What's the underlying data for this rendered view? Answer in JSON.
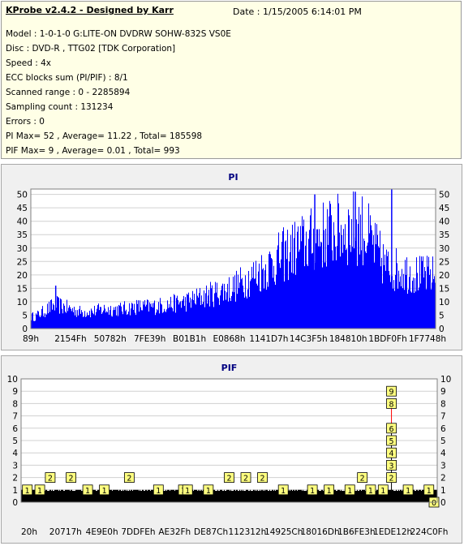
{
  "header": {
    "title": "KProbe v2.4.2 - Designed by Karr",
    "date": "Date :  1/15/2005 6:14:01 PM",
    "lines": [
      "Model : 1-0-1-0 G:LITE-ON DVDRW SOHW-832S  VS0E",
      "Disc : DVD-R , TTG02 [TDK Corporation]",
      "Speed : 4x",
      "ECC blocks sum (PI/PIF) : 8/1",
      "Scanned range : 0 - 2285894",
      "Sampling count : 131234",
      "Errors : 0",
      "PI Max= 52 , Average= 11.22 , Total= 185598",
      "PIF Max= 9 , Average= 0.01 , Total= 993"
    ]
  },
  "colors": {
    "pi_bar": "#0000ff",
    "pif_box": "#ffff80",
    "pif_box_border": "#000000",
    "title": "#000080",
    "spike": "#ff0000"
  },
  "chart_data": [
    {
      "type": "bar",
      "title": "PI",
      "ylim": [
        0,
        52
      ],
      "yticks": [
        "0",
        "5",
        "10",
        "15",
        "20",
        "25",
        "30",
        "35",
        "40",
        "45",
        "50"
      ],
      "xticks": [
        "89h",
        "2154Fh",
        "50782h",
        "7FE39h",
        "B01B1h",
        "E0868h",
        "1141D7h",
        "14C3F5h",
        "184810h",
        "1BDF0Fh",
        "1F7748h"
      ],
      "grid": true,
      "profile": [
        [
          0,
          5
        ],
        [
          0.01,
          5
        ],
        [
          0.02,
          6
        ],
        [
          0.04,
          8
        ],
        [
          0.06,
          10
        ],
        [
          0.08,
          9
        ],
        [
          0.1,
          8
        ],
        [
          0.12,
          7
        ],
        [
          0.15,
          7
        ],
        [
          0.18,
          8
        ],
        [
          0.22,
          8
        ],
        [
          0.26,
          9
        ],
        [
          0.3,
          9
        ],
        [
          0.34,
          10
        ],
        [
          0.38,
          11
        ],
        [
          0.42,
          13
        ],
        [
          0.46,
          15
        ],
        [
          0.5,
          17
        ],
        [
          0.54,
          21
        ],
        [
          0.58,
          25
        ],
        [
          0.62,
          30
        ],
        [
          0.66,
          34
        ],
        [
          0.7,
          37
        ],
        [
          0.74,
          40
        ],
        [
          0.78,
          41
        ],
        [
          0.8,
          42
        ],
        [
          0.82,
          41
        ],
        [
          0.84,
          36
        ],
        [
          0.86,
          30
        ],
        [
          0.88,
          25
        ],
        [
          0.92,
          24
        ],
        [
          0.96,
          22
        ],
        [
          1.0,
          22
        ]
      ],
      "spikes": [
        [
          0.06,
          16
        ],
        [
          0.7,
          50
        ],
        [
          0.8,
          51
        ],
        [
          0.89,
          52
        ]
      ]
    },
    {
      "type": "bar",
      "title": "PIF",
      "ylim": [
        0,
        10
      ],
      "yticks": [
        "0",
        "1",
        "2",
        "3",
        "4",
        "5",
        "6",
        "7",
        "8",
        "9",
        "10"
      ],
      "xticks": [
        "20h",
        "20717h",
        "4E9E0h",
        "7DDFEh",
        "AE32Fh",
        "DE87Ch",
        "112312h",
        "14925Ch",
        "18016Dh",
        "1B6FE3h",
        "1EDE12h",
        "224C0Fh"
      ],
      "grid": true,
      "boxes": [
        [
          0.015,
          1
        ],
        [
          0.045,
          1
        ],
        [
          0.07,
          2
        ],
        [
          0.12,
          2
        ],
        [
          0.16,
          1
        ],
        [
          0.2,
          1
        ],
        [
          0.26,
          2
        ],
        [
          0.33,
          1
        ],
        [
          0.39,
          1
        ],
        [
          0.4,
          1
        ],
        [
          0.45,
          1
        ],
        [
          0.5,
          2
        ],
        [
          0.54,
          2
        ],
        [
          0.58,
          2
        ],
        [
          0.63,
          1
        ],
        [
          0.7,
          1
        ],
        [
          0.74,
          1
        ],
        [
          0.79,
          1
        ],
        [
          0.82,
          2
        ],
        [
          0.84,
          1
        ],
        [
          0.87,
          1
        ],
        [
          0.93,
          1
        ],
        [
          0.98,
          1
        ]
      ],
      "stack_at": 0.89,
      "stack_values": [
        2,
        3,
        4,
        5,
        6,
        8,
        9
      ],
      "end_value": 0
    }
  ]
}
